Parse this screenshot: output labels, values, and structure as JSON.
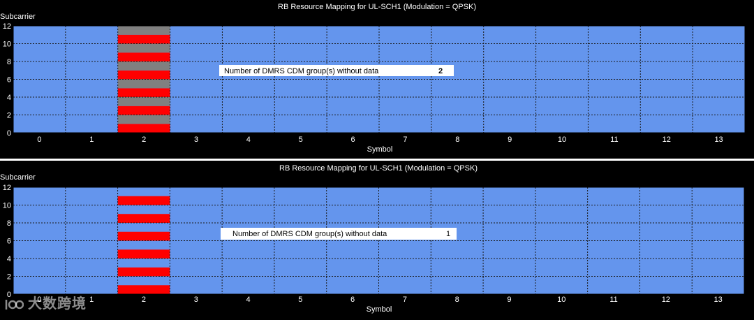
{
  "colors": {
    "background": "#000000",
    "plot_area": "#6495ED",
    "grid": "#1a1a1a",
    "dmrs": "#FF0000",
    "cdm_no_data": "#808080",
    "annotation_box": "#FFFFFF"
  },
  "chart_data": [
    {
      "type": "heatmap",
      "title": "RB Resource Mapping for UL-SCH1 (Modulation = QPSK)",
      "xlabel": "Symbol",
      "ylabel": "Subcarrier",
      "x_ticks": [
        "0",
        "1",
        "2",
        "3",
        "4",
        "5",
        "6",
        "7",
        "8",
        "9",
        "10",
        "11",
        "12",
        "13"
      ],
      "y_ticks": [
        "0",
        "2",
        "4",
        "6",
        "8",
        "10",
        "12"
      ],
      "xlim": [
        -0.5,
        13.5
      ],
      "ylim": [
        0,
        12
      ],
      "grid": true,
      "default_resource": "data",
      "cells": [
        {
          "symbol": 2,
          "subcarrier": 0,
          "type": "dmrs"
        },
        {
          "symbol": 2,
          "subcarrier": 1,
          "type": "cdm_no_data"
        },
        {
          "symbol": 2,
          "subcarrier": 2,
          "type": "dmrs"
        },
        {
          "symbol": 2,
          "subcarrier": 3,
          "type": "cdm_no_data"
        },
        {
          "symbol": 2,
          "subcarrier": 4,
          "type": "dmrs"
        },
        {
          "symbol": 2,
          "subcarrier": 5,
          "type": "cdm_no_data"
        },
        {
          "symbol": 2,
          "subcarrier": 6,
          "type": "dmrs"
        },
        {
          "symbol": 2,
          "subcarrier": 7,
          "type": "cdm_no_data"
        },
        {
          "symbol": 2,
          "subcarrier": 8,
          "type": "dmrs"
        },
        {
          "symbol": 2,
          "subcarrier": 9,
          "type": "cdm_no_data"
        },
        {
          "symbol": 2,
          "subcarrier": 10,
          "type": "dmrs"
        },
        {
          "symbol": 2,
          "subcarrier": 11,
          "type": "cdm_no_data"
        }
      ],
      "annotation": {
        "label": "Number of DMRS CDM group(s) without data",
        "value": "2",
        "value_bold": true
      }
    },
    {
      "type": "heatmap",
      "title": "RB Resource Mapping for UL-SCH1 (Modulation = QPSK)",
      "xlabel": "Symbol",
      "ylabel": "Subcarrier",
      "x_ticks": [
        "0",
        "1",
        "2",
        "3",
        "4",
        "5",
        "6",
        "7",
        "8",
        "9",
        "10",
        "11",
        "12",
        "13"
      ],
      "y_ticks": [
        "0",
        "2",
        "4",
        "6",
        "8",
        "10",
        "12"
      ],
      "xlim": [
        -0.5,
        13.5
      ],
      "ylim": [
        0,
        12
      ],
      "grid": true,
      "default_resource": "data",
      "cells": [
        {
          "symbol": 2,
          "subcarrier": 0,
          "type": "dmrs"
        },
        {
          "symbol": 2,
          "subcarrier": 2,
          "type": "dmrs"
        },
        {
          "symbol": 2,
          "subcarrier": 4,
          "type": "dmrs"
        },
        {
          "symbol": 2,
          "subcarrier": 6,
          "type": "dmrs"
        },
        {
          "symbol": 2,
          "subcarrier": 8,
          "type": "dmrs"
        },
        {
          "symbol": 2,
          "subcarrier": 10,
          "type": "dmrs"
        }
      ],
      "annotation": {
        "label": "Number of DMRS CDM group(s) without data",
        "value": "1",
        "value_bold": false
      }
    }
  ],
  "watermark": {
    "text": "大数跨境"
  }
}
